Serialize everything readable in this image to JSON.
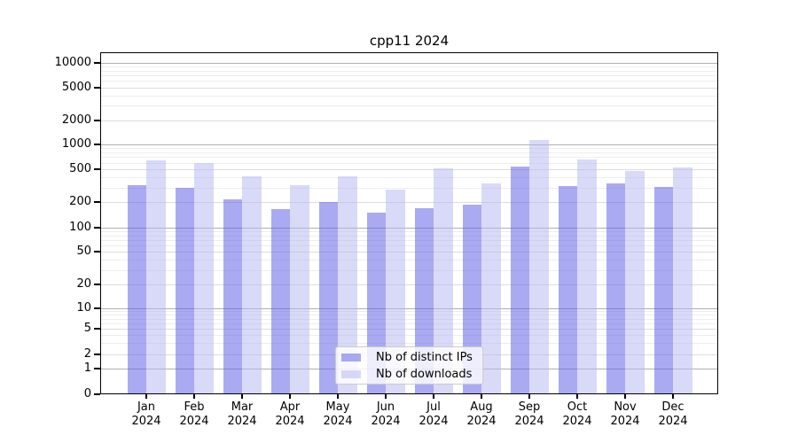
{
  "title": "cpp11 2024",
  "colors": {
    "ips_bar": "rgba(85,85,230,0.5)",
    "downloads_bar": "rgba(180,180,242,0.5)",
    "grid_major": "#b0b0b0",
    "grid_mid": "#dcdcdc",
    "grid_minor": "#ededed",
    "axis": "#000000"
  },
  "chart_data": {
    "type": "bar",
    "title": "cpp11 2024",
    "xlabel": "",
    "ylabel": "",
    "yscale": "symlog",
    "grid": true,
    "legend_position": "lower center",
    "categories": [
      "Jan 2024",
      "Feb 2024",
      "Mar 2024",
      "Apr 2024",
      "May 2024",
      "Jun 2024",
      "Jul 2024",
      "Aug 2024",
      "Sep 2024",
      "Oct 2024",
      "Nov 2024",
      "Dec 2024"
    ],
    "series": [
      {
        "name": "Nb of distinct IPs",
        "color": "rgba(85,85,230,0.5)",
        "values": [
          325,
          295,
          215,
          165,
          200,
          150,
          170,
          185,
          540,
          310,
          335,
          305
        ]
      },
      {
        "name": "Nb of downloads",
        "color": "rgba(180,180,242,0.5)",
        "values": [
          640,
          590,
          415,
          320,
          410,
          285,
          510,
          335,
          1130,
          660,
          480,
          525
        ]
      }
    ],
    "yticks": [
      0,
      1,
      2,
      5,
      10,
      20,
      50,
      100,
      200,
      500,
      1000,
      2000,
      5000,
      10000
    ],
    "ylim": [
      0,
      13500
    ]
  },
  "legend": {
    "items": [
      {
        "label": "Nb of distinct IPs"
      },
      {
        "label": "Nb of downloads"
      }
    ]
  }
}
